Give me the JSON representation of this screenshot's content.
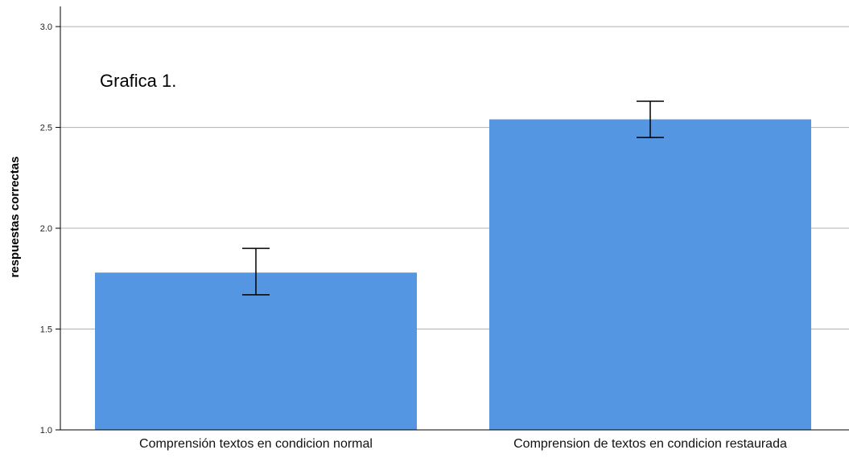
{
  "chart_data": {
    "type": "bar",
    "title": "",
    "annotation": "Grafica 1.",
    "xlabel": "",
    "ylabel": "respuestas correctas",
    "categories": [
      "Comprensión textos en condicion normal",
      "Comprension de textos en condicion restaurada"
    ],
    "values": [
      1.78,
      2.54
    ],
    "error_bars": [
      {
        "low": 1.67,
        "high": 1.9
      },
      {
        "low": 2.45,
        "high": 2.63
      }
    ],
    "ylim": [
      1.0,
      3.1
    ],
    "yticks": [
      "1.0",
      "1.5",
      "2.0",
      "2.5",
      "3.0"
    ],
    "grid": true,
    "bar_color": "#5596e3",
    "error_color": "#000000",
    "grid_color": "#b0b0b0"
  }
}
